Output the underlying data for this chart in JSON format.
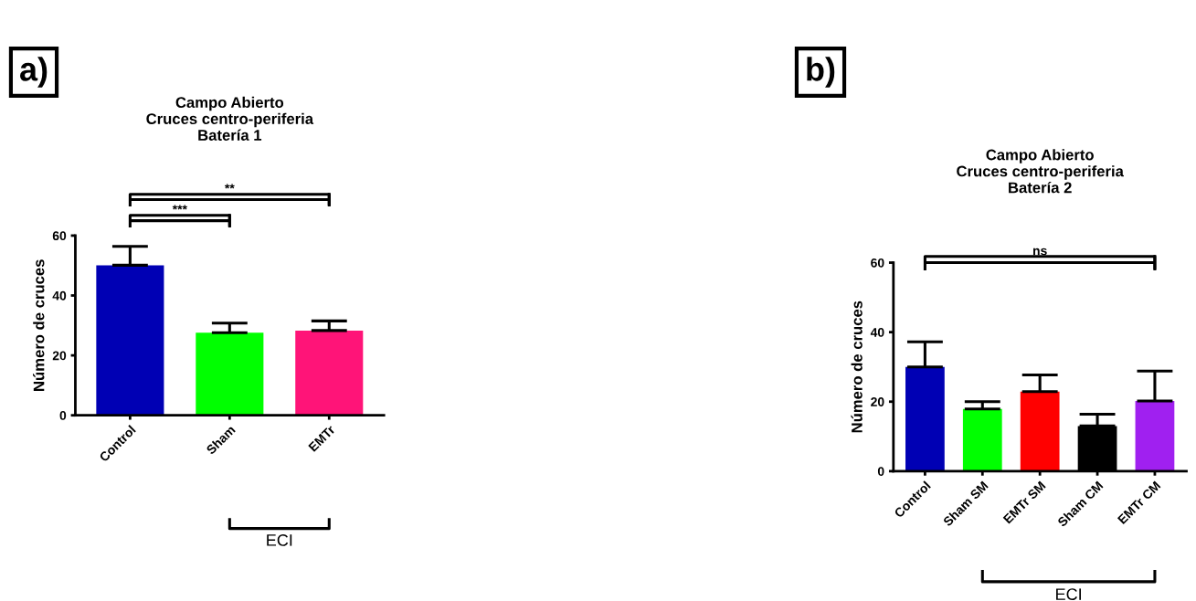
{
  "chart_data": [
    {
      "type": "bar",
      "title": "Campo Abierto\nCruces centro-periferia\nBatería 1",
      "ylabel": "Número de cruces",
      "categories": [
        "Control",
        "Sham",
        "EMTr"
      ],
      "values": [
        50.1,
        27.6,
        28.3
      ],
      "colors": [
        "#0000b4",
        "#00ff00",
        "#ff1478"
      ],
      "errors": [
        [
          50.1,
          56.4
        ],
        [
          27.6,
          30.8
        ],
        [
          28.3,
          31.5
        ]
      ],
      "ylim": [
        0,
        60
      ],
      "yticks": [
        0,
        20,
        40,
        60
      ],
      "grid": false,
      "legend": false,
      "annotations": [
        "a)",
        "***",
        "**",
        "ECI"
      ]
    },
    {
      "type": "bar",
      "title": "Campo Abierto\nCruces centro-periferia\nBatería 2",
      "ylabel": "Número de cruces",
      "categories": [
        "Control",
        "Sham SM",
        "EMTr SM",
        "Sham CM",
        "EMTr CM"
      ],
      "values": [
        30,
        17.9,
        22.9,
        13,
        20.2
      ],
      "colors": [
        "#0000b4",
        "#00ff00",
        "#ff0000",
        "#000000",
        "#a020f0"
      ],
      "errors": [
        [
          30,
          37.2
        ],
        [
          17.9,
          20
        ],
        [
          22.9,
          27.7
        ],
        [
          13,
          16.4
        ],
        [
          20.2,
          28.8
        ]
      ],
      "ylim": [
        0,
        60
      ],
      "yticks": [
        0,
        20,
        40,
        60
      ],
      "grid": false,
      "legend": false,
      "annotations": [
        "b)",
        "ns",
        "ECI"
      ]
    }
  ]
}
